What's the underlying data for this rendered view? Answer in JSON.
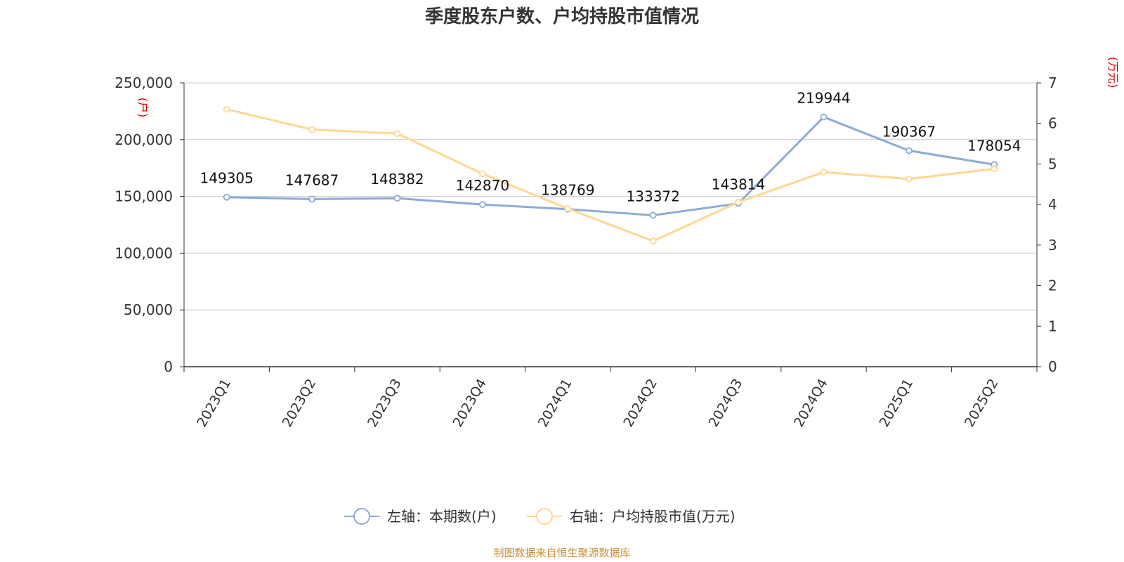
{
  "chart_data": {
    "type": "line",
    "title": "季度股东户数、户均持股市值情况",
    "categories": [
      "2023Q1",
      "2023Q2",
      "2023Q3",
      "2023Q4",
      "2024Q1",
      "2024Q2",
      "2024Q3",
      "2024Q4",
      "2025Q1",
      "2025Q2"
    ],
    "series": [
      {
        "name": "左轴：本期数(户)",
        "axis": "left",
        "color": "#8eaad8",
        "values": [
          149305,
          147687,
          148382,
          142870,
          138769,
          133372,
          143814,
          219944,
          190367,
          178054
        ],
        "data_labels": [
          "149305",
          "147687",
          "148382",
          "142870",
          "138769",
          "133372",
          "143814",
          "219944",
          "190367",
          "178054"
        ]
      },
      {
        "name": "右轴：户均持股市值(万元)",
        "axis": "right",
        "color": "#fcd894",
        "values": [
          6.35,
          5.85,
          5.75,
          4.76,
          3.9,
          3.1,
          4.06,
          4.8,
          4.63,
          4.88
        ]
      }
    ],
    "left_axis": {
      "unit": "(户)",
      "ylim": [
        0,
        250000
      ],
      "ticks": [
        "0",
        "50,000",
        "100,000",
        "150,000",
        "200,000",
        "250,000"
      ]
    },
    "right_axis": {
      "unit": "(万元)",
      "ylim": [
        0,
        7
      ],
      "ticks": [
        "0",
        "1",
        "2",
        "3",
        "4",
        "5",
        "6",
        "7"
      ]
    },
    "grid": true,
    "legend_position": "bottom-center",
    "source": "制图数据来自恒生聚源数据库"
  }
}
